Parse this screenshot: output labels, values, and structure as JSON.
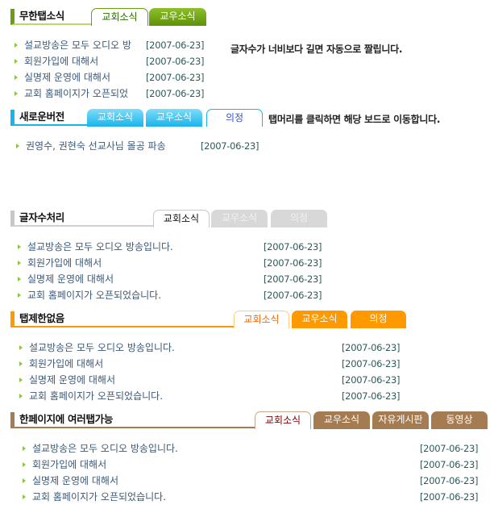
{
  "sections": [
    {
      "title": "무한탭소식",
      "color": "#6a9e10",
      "line": "#b9d96a",
      "tabs": [
        {
          "label": "교회소식",
          "active": true
        },
        {
          "label": "교우소식",
          "active": false
        }
      ],
      "note": "글자수가 너비보다 길면 자동으로 짤립니다.",
      "items": [
        {
          "text": "설교방송은 모두 오디오 방",
          "date": "[2007-06-23]"
        },
        {
          "text": "회원가입에 대해서",
          "date": "[2007-06-23]"
        },
        {
          "text": "실명제 운영에 대해서",
          "date": "[2007-06-23]"
        },
        {
          "text": "교회 홈페이지가 오픈되었",
          "date": "[2007-06-23]"
        }
      ]
    },
    {
      "title": "새로운버전",
      "color": "#1ab4ec",
      "line": "#1ab4ec",
      "tabs": [
        {
          "label": "교회소식",
          "active": false
        },
        {
          "label": "교우소식",
          "active": false
        },
        {
          "label": "의정",
          "active": true
        }
      ],
      "note": "탭머리를 클릭하면 해당 보드로 이동합니다.",
      "items": [
        {
          "text": "권영수, 권현숙 선교사님 몰공 파송",
          "date": "[2007-06-23]"
        }
      ]
    },
    {
      "title": "글자수처리",
      "color": "#c8c8c8",
      "line": "#d0d0d0",
      "tabs": [
        {
          "label": "교회소식",
          "active": true
        },
        {
          "label": "교우소식",
          "active": false
        },
        {
          "label": "의정",
          "active": false
        }
      ],
      "items": [
        {
          "text": "설교방송은 모두 오디오 방송입니다.",
          "date": "[2007-06-23]"
        },
        {
          "text": "회원가입에 대해서",
          "date": "[2007-06-23]"
        },
        {
          "text": "실명제 운영에 대해서",
          "date": "[2007-06-23]"
        },
        {
          "text": "교회 홈페이지가 오픈되었습니다.",
          "date": "[2007-06-23]"
        }
      ]
    },
    {
      "title": "탭제한없음",
      "color": "#ff9900",
      "line": "#ff9900",
      "tabs": [
        {
          "label": "교회소식",
          "active": true
        },
        {
          "label": "교우소식",
          "active": false
        },
        {
          "label": "의정",
          "active": false
        }
      ],
      "items": [
        {
          "text": "설교방송은 모두 오디오 방송입니다.",
          "date": "[2007-06-23]"
        },
        {
          "text": "회원가입에 대해서",
          "date": "[2007-06-23]"
        },
        {
          "text": "실명제 운영에 대해서",
          "date": "[2007-06-23]"
        },
        {
          "text": "교회 홈페이지가 오픈되었습니다.",
          "date": "[2007-06-23]"
        }
      ]
    },
    {
      "title": "한페이지에 여러탭가능",
      "color": "#a57c52",
      "line": "#a57c52",
      "tabs": [
        {
          "label": "교회소식",
          "active": true
        },
        {
          "label": "교우소식",
          "active": false
        },
        {
          "label": "자유게시판",
          "active": false
        },
        {
          "label": "동영상",
          "active": false
        }
      ],
      "items": [
        {
          "text": "설교방송은 모두 오디오 방송입니다.",
          "date": "[2007-06-23]"
        },
        {
          "text": "회원가입에 대해서",
          "date": "[2007-06-23]"
        },
        {
          "text": "실명제 운영에 대해서",
          "date": "[2007-06-23]"
        },
        {
          "text": "교회 홈페이지가 오픈되었습니다.",
          "date": "[2007-06-23]"
        }
      ]
    }
  ]
}
